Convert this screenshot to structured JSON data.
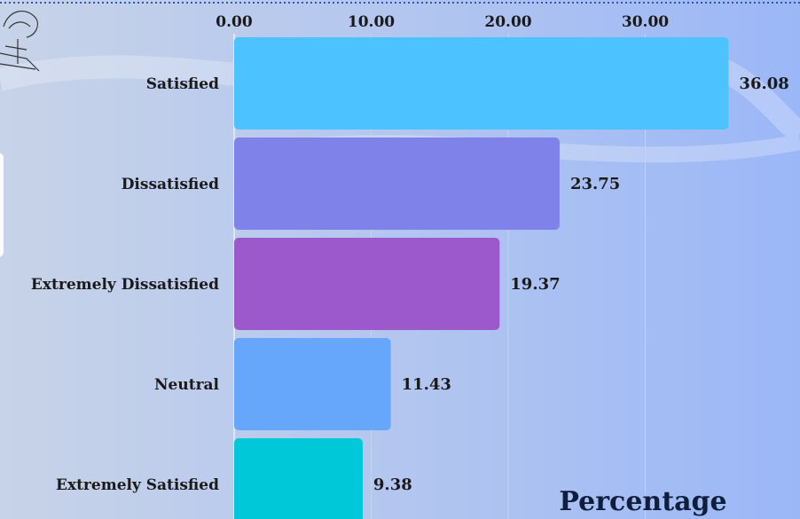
{
  "chart_data": {
    "type": "bar",
    "orientation": "horizontal",
    "categories": [
      "Satisfied",
      "Dissatisfied",
      "Extremely Dissatisfied",
      "Neutral",
      "Extremely Satisfied"
    ],
    "values": [
      36.08,
      23.75,
      19.37,
      11.43,
      9.38
    ],
    "value_labels": [
      "36.08",
      "23.75",
      "19.37",
      "11.43",
      "9.38"
    ],
    "x_ticks": [
      "0.00",
      "10.00",
      "20.00",
      "30.00"
    ],
    "tick_values": [
      0,
      10,
      20,
      30
    ],
    "xlim": [
      0,
      40
    ],
    "xlabel": "Percentage",
    "title": "",
    "grid": true,
    "bar_colors": [
      "#4cc3ff",
      "#7f82e8",
      "#9b59cc",
      "#66a6fb",
      "#00c8d9"
    ]
  }
}
